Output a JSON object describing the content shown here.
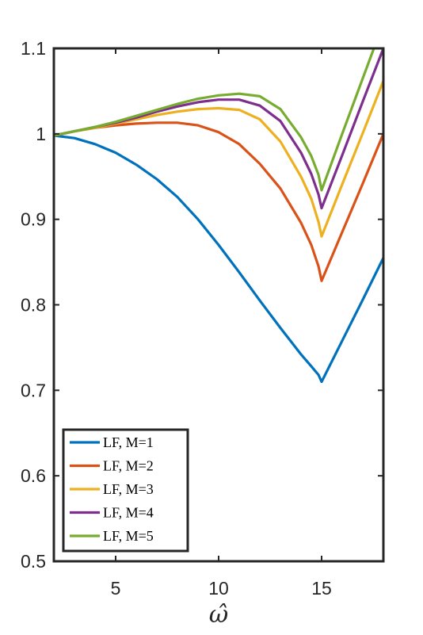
{
  "chart_data": {
    "type": "line",
    "title": "",
    "xlabel": "ω̂",
    "ylabel": "",
    "xlim": [
      2,
      18
    ],
    "ylim": [
      0.5,
      1.1
    ],
    "xticks": [
      5,
      10,
      15
    ],
    "yticks": [
      0.5,
      0.6,
      0.7,
      0.8,
      0.9,
      1,
      1.1
    ],
    "xtick_labels": [
      "5",
      "10",
      "15"
    ],
    "ytick_labels": [
      "0.5",
      "0.6",
      "0.7",
      "0.8",
      "0.9",
      "1",
      "1.1"
    ],
    "grid": false,
    "legend_position": "bottom-left",
    "x": [
      2,
      3,
      4,
      5,
      6,
      7,
      8,
      9,
      10,
      11,
      12,
      13,
      14,
      14.5,
      14.85,
      15,
      16,
      17,
      18
    ],
    "series": [
      {
        "name": "LF, M=1",
        "color": "#0072BD",
        "values": [
          0.998,
          0.995,
          0.988,
          0.978,
          0.964,
          0.947,
          0.926,
          0.9,
          0.87,
          0.838,
          0.805,
          0.773,
          0.742,
          0.728,
          0.718,
          0.71,
          0.758,
          0.806,
          0.855
        ]
      },
      {
        "name": "LF, M=2",
        "color": "#D95319",
        "values": [
          0.998,
          1.003,
          1.007,
          1.01,
          1.012,
          1.013,
          1.013,
          1.01,
          1.002,
          0.988,
          0.965,
          0.936,
          0.896,
          0.87,
          0.845,
          0.828,
          0.885,
          0.942,
          1.0
        ]
      },
      {
        "name": "LF, M=3",
        "color": "#EDB120",
        "values": [
          0.998,
          1.003,
          1.007,
          1.012,
          1.017,
          1.022,
          1.026,
          1.029,
          1.03,
          1.028,
          1.017,
          0.991,
          0.95,
          0.924,
          0.897,
          0.88,
          0.941,
          1.001,
          1.062
        ]
      },
      {
        "name": "LF, M=4",
        "color": "#7E2F8E",
        "values": [
          0.998,
          1.003,
          1.008,
          1.013,
          1.019,
          1.026,
          1.032,
          1.037,
          1.04,
          1.04,
          1.033,
          1.015,
          0.978,
          0.953,
          0.929,
          0.913,
          0.975,
          1.038,
          1.1
        ]
      },
      {
        "name": "LF, M=5",
        "color": "#77AC30",
        "values": [
          0.998,
          1.003,
          1.008,
          1.014,
          1.021,
          1.028,
          1.035,
          1.041,
          1.045,
          1.047,
          1.044,
          1.029,
          0.996,
          0.974,
          0.952,
          0.934,
          1.0,
          1.065,
          1.13
        ]
      }
    ]
  }
}
